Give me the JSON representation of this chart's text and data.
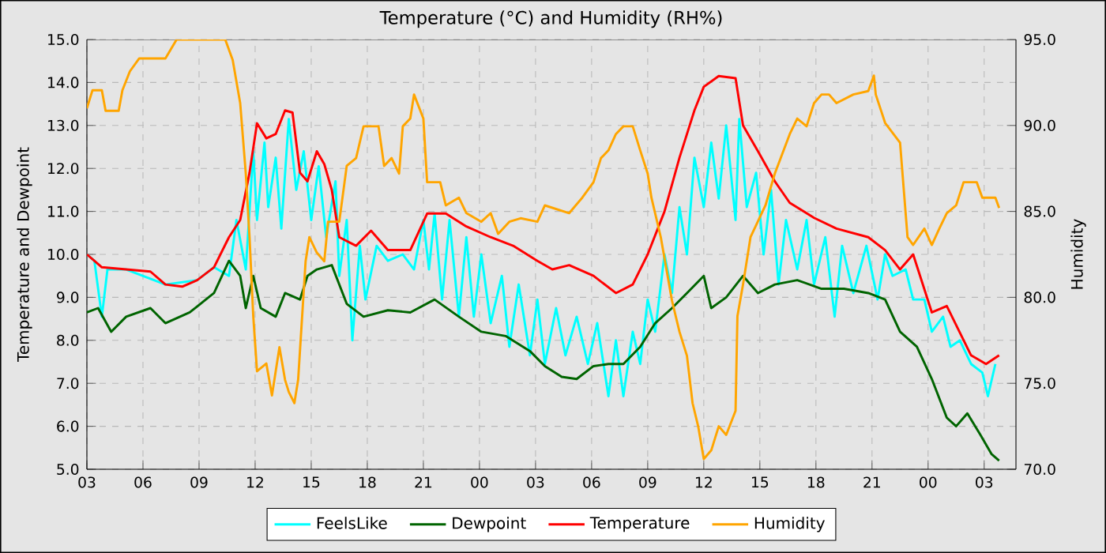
{
  "chart_data": {
    "type": "line",
    "title": "Temperature (°C) and Humidity (RH%)",
    "ylabel": "Temperature and Dewpoint",
    "y2label": "Humidity",
    "xlim": [
      3,
      52.7
    ],
    "xticks": [
      {
        "value": 3,
        "label": "03"
      },
      {
        "value": 6,
        "label": "06"
      },
      {
        "value": 9,
        "label": "09"
      },
      {
        "value": 12,
        "label": "12"
      },
      {
        "value": 15,
        "label": "15"
      },
      {
        "value": 18,
        "label": "18"
      },
      {
        "value": 21,
        "label": "21"
      },
      {
        "value": 24,
        "label": "00"
      },
      {
        "value": 27,
        "label": "03"
      },
      {
        "value": 30,
        "label": "06"
      },
      {
        "value": 33,
        "label": "09"
      },
      {
        "value": 36,
        "label": "12"
      },
      {
        "value": 39,
        "label": "15"
      },
      {
        "value": 42,
        "label": "18"
      },
      {
        "value": 45,
        "label": "21"
      },
      {
        "value": 48,
        "label": "00"
      },
      {
        "value": 51,
        "label": "03"
      }
    ],
    "ylim": [
      5,
      15
    ],
    "yticks": [
      {
        "value": 5,
        "label": "5.0"
      },
      {
        "value": 6,
        "label": "6.0"
      },
      {
        "value": 7,
        "label": "7.0"
      },
      {
        "value": 8,
        "label": "8.0"
      },
      {
        "value": 9,
        "label": "9.0"
      },
      {
        "value": 10,
        "label": "10.0"
      },
      {
        "value": 11,
        "label": "11.0"
      },
      {
        "value": 12,
        "label": "12.0"
      },
      {
        "value": 13,
        "label": "13.0"
      },
      {
        "value": 14,
        "label": "14.0"
      },
      {
        "value": 15,
        "label": "15.0"
      }
    ],
    "y2lim": [
      70,
      95
    ],
    "y2ticks": [
      {
        "value": 70,
        "label": "70.0"
      },
      {
        "value": 75,
        "label": "75.0"
      },
      {
        "value": 80,
        "label": "80.0"
      },
      {
        "value": 85,
        "label": "85.0"
      },
      {
        "value": 90,
        "label": "90.0"
      },
      {
        "value": 95,
        "label": "95.0"
      }
    ],
    "grid": true,
    "legend": "bottom",
    "marker": "none",
    "line_style": "solid",
    "series": [
      {
        "name": "FeelsLike",
        "color": "#00ffff",
        "x": [
          3,
          3.4,
          3.8,
          4.1,
          5.1,
          7.2,
          8.9,
          9.8,
          10.6,
          11.0,
          11.5,
          11.9,
          12.1,
          12.5,
          12.7,
          13.1,
          13.4,
          13.8,
          14.2,
          14.6,
          15.0,
          15.4,
          15.8,
          16.3,
          16.5,
          16.9,
          17.2,
          17.6,
          17.9,
          18.5,
          19.1,
          19.9,
          20.5,
          21.0,
          21.3,
          21.6,
          22.0,
          22.4,
          22.9,
          23.3,
          23.7,
          24.1,
          24.6,
          25.2,
          25.6,
          26.1,
          26.7,
          27.1,
          27.5,
          28.1,
          28.6,
          29.2,
          29.8,
          30.3,
          30.9,
          31.3,
          31.7,
          32.2,
          32.6,
          33.0,
          33.4,
          33.9,
          34.3,
          34.7,
          35.1,
          35.5,
          36.0,
          36.4,
          36.8,
          37.2,
          37.7,
          37.9,
          38.3,
          38.8,
          39.2,
          39.6,
          40.0,
          40.4,
          41.0,
          41.5,
          41.9,
          42.5,
          43.0,
          43.4,
          44.0,
          44.7,
          45.3,
          45.7,
          46.1,
          46.8,
          47.2,
          47.8,
          48.2,
          48.8,
          49.2,
          49.7,
          50.3,
          50.9,
          51.2,
          51.6
        ],
        "values": [
          10.0,
          9.85,
          8.55,
          9.65,
          9.65,
          9.3,
          9.4,
          9.7,
          9.5,
          10.8,
          9.65,
          12.4,
          10.8,
          12.6,
          11.1,
          12.25,
          10.6,
          13.15,
          11.5,
          12.4,
          10.8,
          12.05,
          10.4,
          11.7,
          9.5,
          10.8,
          8.0,
          10.2,
          8.95,
          10.2,
          9.85,
          10.0,
          9.65,
          10.8,
          9.65,
          10.95,
          8.95,
          10.8,
          8.55,
          10.4,
          8.55,
          10.0,
          8.4,
          9.5,
          7.85,
          9.3,
          7.65,
          8.95,
          7.45,
          8.75,
          7.65,
          8.55,
          7.45,
          8.4,
          6.7,
          8.0,
          6.7,
          8.2,
          7.45,
          8.95,
          8.2,
          10.0,
          9.1,
          11.1,
          10.0,
          12.25,
          11.1,
          12.6,
          11.3,
          13.0,
          10.8,
          13.15,
          11.1,
          11.9,
          10.0,
          11.5,
          9.3,
          10.8,
          9.65,
          10.8,
          9.3,
          10.4,
          8.55,
          10.2,
          9.1,
          10.2,
          8.95,
          10.0,
          9.5,
          9.65,
          8.95,
          8.95,
          8.2,
          8.55,
          7.85,
          8.0,
          7.45,
          7.25,
          6.7,
          7.45
        ]
      },
      {
        "name": "Dewpoint",
        "color": "#006400",
        "x": [
          3,
          3.6,
          4.3,
          5.1,
          6.4,
          7.2,
          8.5,
          9.8,
          10.6,
          11.2,
          11.5,
          11.9,
          12.3,
          13.1,
          13.6,
          14.4,
          14.8,
          15.3,
          16.1,
          16.9,
          17.8,
          19.1,
          20.3,
          21.6,
          22.9,
          24.1,
          25.4,
          26.7,
          27.5,
          28.4,
          29.2,
          30.1,
          30.9,
          31.7,
          32.6,
          33.4,
          34.3,
          35.1,
          36.0,
          36.4,
          37.2,
          38.1,
          38.9,
          39.8,
          41.0,
          42.3,
          43.5,
          44.8,
          45.7,
          46.5,
          47.4,
          48.2,
          49.0,
          49.5,
          50.1,
          50.8,
          51.4,
          51.8
        ],
        "values": [
          8.65,
          8.75,
          8.2,
          8.55,
          8.75,
          8.4,
          8.65,
          9.1,
          9.85,
          9.5,
          8.75,
          9.5,
          8.75,
          8.55,
          9.1,
          8.95,
          9.5,
          9.65,
          9.75,
          8.85,
          8.55,
          8.7,
          8.65,
          8.95,
          8.55,
          8.2,
          8.1,
          7.75,
          7.4,
          7.15,
          7.1,
          7.4,
          7.45,
          7.45,
          7.85,
          8.4,
          8.75,
          9.1,
          9.5,
          8.75,
          9.0,
          9.5,
          9.1,
          9.3,
          9.4,
          9.2,
          9.2,
          9.1,
          8.95,
          8.2,
          7.85,
          7.1,
          6.2,
          6.0,
          6.3,
          5.8,
          5.35,
          5.2
        ]
      },
      {
        "name": "Temperature",
        "color": "#ff0000",
        "x": [
          3,
          3.4,
          3.8,
          5.1,
          6.4,
          7.2,
          8.1,
          8.9,
          9.8,
          10.6,
          11.2,
          11.7,
          12.1,
          12.6,
          13.1,
          13.6,
          14.0,
          14.4,
          14.8,
          15.3,
          15.7,
          16.1,
          16.5,
          17.4,
          18.2,
          19.1,
          20.3,
          21.2,
          22.2,
          23.3,
          24.6,
          25.8,
          27.1,
          27.9,
          28.8,
          30.1,
          31.3,
          32.2,
          33.0,
          33.9,
          34.7,
          35.5,
          36.0,
          36.8,
          37.7,
          38.1,
          38.9,
          39.8,
          40.6,
          41.9,
          43.1,
          44.8,
          45.7,
          46.5,
          47.2,
          48.2,
          49.0,
          50.3,
          51.1,
          51.8
        ],
        "values": [
          10.0,
          9.85,
          9.7,
          9.65,
          9.6,
          9.3,
          9.25,
          9.4,
          9.7,
          10.4,
          10.8,
          11.9,
          13.05,
          12.7,
          12.8,
          13.35,
          13.3,
          11.9,
          11.7,
          12.4,
          12.1,
          11.5,
          10.4,
          10.2,
          10.55,
          10.1,
          10.1,
          10.95,
          10.95,
          10.65,
          10.4,
          10.2,
          9.85,
          9.65,
          9.75,
          9.5,
          9.1,
          9.3,
          10.0,
          11.0,
          12.25,
          13.35,
          13.9,
          14.15,
          14.1,
          13.0,
          12.4,
          11.7,
          11.2,
          10.85,
          10.6,
          10.4,
          10.1,
          9.65,
          10.0,
          8.65,
          8.8,
          7.65,
          7.45,
          7.65
        ]
      },
      {
        "name": "Humidity",
        "color": "#ffa500",
        "axis": "y2",
        "x": [
          3,
          3.3,
          3.8,
          4.0,
          4.7,
          4.9,
          5.3,
          5.8,
          7.2,
          7.8,
          10.4,
          10.8,
          11.2,
          11.5,
          11.7,
          11.9,
          12.1,
          12.6,
          12.9,
          13.3,
          13.6,
          13.8,
          14.1,
          14.3,
          14.7,
          14.9,
          15.3,
          15.7,
          15.9,
          16.5,
          16.9,
          17.4,
          17.8,
          18.6,
          18.9,
          19.3,
          19.7,
          19.9,
          20.3,
          20.5,
          21.0,
          21.2,
          21.9,
          22.2,
          22.9,
          23.3,
          24.1,
          24.6,
          25.0,
          25.6,
          26.2,
          27.1,
          27.5,
          28.8,
          29.5,
          30.1,
          30.5,
          30.9,
          31.3,
          31.7,
          32.2,
          32.6,
          33.0,
          33.2,
          33.7,
          34.3,
          34.7,
          35.1,
          35.4,
          35.7,
          36.0,
          36.4,
          36.8,
          37.2,
          37.7,
          37.8,
          38.1,
          38.5,
          39.3,
          39.8,
          40.6,
          41.0,
          41.5,
          41.9,
          42.3,
          42.7,
          43.1,
          44.0,
          44.8,
          45.1,
          45.2,
          45.7,
          46.5,
          46.9,
          47.2,
          47.8,
          48.2,
          48.6,
          49.0,
          49.5,
          49.9,
          50.6,
          50.9,
          51.6,
          51.8
        ],
        "values": [
          91.0,
          92.05,
          92.05,
          90.85,
          90.85,
          92.05,
          93.15,
          93.9,
          93.9,
          95.0,
          95.0,
          93.8,
          91.3,
          87.2,
          83.5,
          78.9,
          75.7,
          76.15,
          74.3,
          77.1,
          75.2,
          74.5,
          73.85,
          75.2,
          82.1,
          83.5,
          82.6,
          82.1,
          84.4,
          84.4,
          87.65,
          88.1,
          89.95,
          89.95,
          87.65,
          88.1,
          87.2,
          89.95,
          90.4,
          91.8,
          90.4,
          86.7,
          86.7,
          85.35,
          85.8,
          84.9,
          84.4,
          84.9,
          83.7,
          84.4,
          84.6,
          84.4,
          85.35,
          84.9,
          85.8,
          86.7,
          88.1,
          88.55,
          89.5,
          89.95,
          89.95,
          88.55,
          87.2,
          85.8,
          83.5,
          79.8,
          78.0,
          76.6,
          73.85,
          72.5,
          70.6,
          71.1,
          72.5,
          72.0,
          73.4,
          78.9,
          80.75,
          83.5,
          85.35,
          87.2,
          89.5,
          90.4,
          89.95,
          91.3,
          91.8,
          91.8,
          91.3,
          91.8,
          92.0,
          92.9,
          91.8,
          90.15,
          89.0,
          83.5,
          83.05,
          84.0,
          83.05,
          84.0,
          84.9,
          85.35,
          86.7,
          86.7,
          85.8,
          85.8,
          85.2
        ]
      }
    ]
  }
}
